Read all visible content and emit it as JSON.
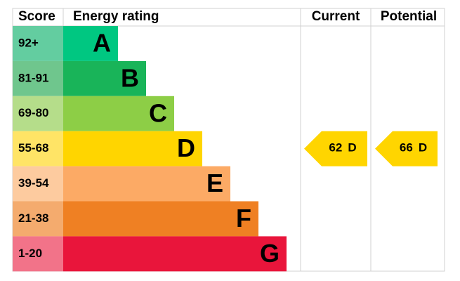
{
  "header": {
    "score": "Score",
    "rating": "Energy rating",
    "current": "Current",
    "potential": "Potential"
  },
  "bands": [
    {
      "score": "92+",
      "letter": "A",
      "color": "#00c781",
      "score_color": "#63cda0"
    },
    {
      "score": "81-91",
      "letter": "B",
      "color": "#19b459",
      "score_color": "#6fc68d"
    },
    {
      "score": "69-80",
      "letter": "C",
      "color": "#8dce46",
      "score_color": "#b5dd8a"
    },
    {
      "score": "55-68",
      "letter": "D",
      "color": "#ffd500",
      "score_color": "#ffe466"
    },
    {
      "score": "39-54",
      "letter": "E",
      "color": "#fcaa65",
      "score_color": "#fdcb9f"
    },
    {
      "score": "21-38",
      "letter": "F",
      "color": "#ef8023",
      "score_color": "#f4ab6e"
    },
    {
      "score": "1-20",
      "letter": "G",
      "color": "#e9153b",
      "score_color": "#f27389"
    }
  ],
  "current": {
    "score": 62,
    "letter": "D"
  },
  "potential": {
    "score": 66,
    "letter": "D"
  }
}
